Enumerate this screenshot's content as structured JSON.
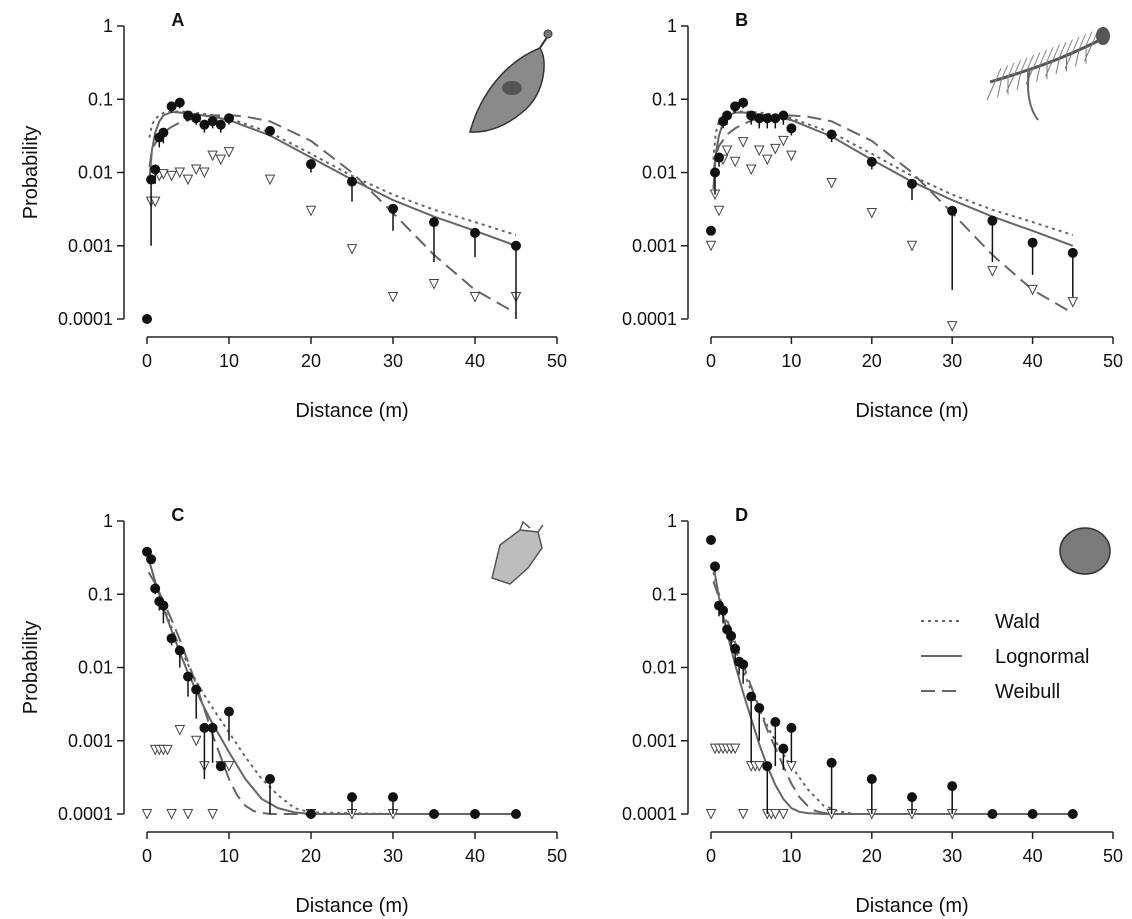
{
  "figure": {
    "xlabel": "Distance (m)",
    "ylabel": "Probability",
    "legend": [
      {
        "label": "Wald",
        "style": "dotted"
      },
      {
        "label": "Lognormal",
        "style": "solid"
      },
      {
        "label": "Weibull",
        "style": "dashed"
      }
    ],
    "colors": {
      "points": "#111111",
      "curves": "#666666",
      "triangles": "#444444"
    },
    "icons": [
      "winged-seed-icon",
      "plumed-seed-icon",
      "angular-seed-icon",
      "round-seed-icon"
    ]
  },
  "chart_data": [
    {
      "type": "scatter",
      "panel": "A",
      "xlabel": "Distance (m)",
      "ylabel": "Probability",
      "xlim": [
        0,
        50
      ],
      "ylim": [
        0.0001,
        1
      ],
      "yscale": "log",
      "xticks": [
        "0",
        "10",
        "20",
        "30",
        "40",
        "50"
      ],
      "yticks": [
        "0.0001",
        "0.001",
        "0.01",
        "0.1",
        "1"
      ],
      "observed": {
        "x": [
          0,
          0.5,
          1,
          1.5,
          2,
          3,
          4,
          5,
          6,
          7,
          8,
          9,
          10,
          15,
          20,
          25,
          30,
          35,
          40,
          45
        ],
        "y": [
          0.0001,
          0.008,
          0.011,
          0.03,
          0.035,
          0.08,
          0.09,
          0.06,
          0.055,
          0.045,
          0.05,
          0.045,
          0.055,
          0.037,
          0.013,
          0.0075,
          0.0032,
          0.0021,
          0.0015,
          0.001
        ],
        "lower": [
          0.0001,
          0.001,
          0.007,
          0.022,
          0.025,
          0.065,
          0.075,
          0.05,
          0.045,
          0.035,
          0.04,
          0.035,
          0.045,
          0.031,
          0.01,
          0.004,
          0.0016,
          0.0006,
          0.0007,
          0.0001
        ]
      },
      "triangles": {
        "x": [
          0.5,
          1,
          1.5,
          2,
          3,
          4,
          5,
          6,
          7,
          8,
          9,
          10,
          15,
          20,
          25,
          30,
          35,
          40,
          45
        ],
        "y": [
          0.004,
          0.004,
          0.009,
          0.0095,
          0.009,
          0.01,
          0.008,
          0.011,
          0.01,
          0.017,
          0.015,
          0.019,
          0.008,
          0.003,
          0.0009,
          0.0002,
          0.0003,
          0.0002,
          0.0002
        ]
      },
      "curves": {
        "Wald": {
          "x": [
            0.3,
            0.6,
            1,
            1.5,
            2,
            3,
            4,
            5,
            6,
            8,
            10,
            15,
            20,
            25,
            30,
            35,
            40,
            45
          ],
          "y": [
            0.03,
            0.045,
            0.054,
            0.06,
            0.065,
            0.068,
            0.068,
            0.067,
            0.065,
            0.061,
            0.055,
            0.035,
            0.018,
            0.009,
            0.005,
            0.0031,
            0.0021,
            0.0014
          ]
        },
        "Lognormal": {
          "x": [
            0.3,
            0.6,
            1,
            1.5,
            2,
            3,
            4,
            5,
            6,
            8,
            10,
            15,
            20,
            25,
            30,
            35,
            40,
            45
          ],
          "y": [
            0.008,
            0.02,
            0.035,
            0.05,
            0.06,
            0.067,
            0.066,
            0.064,
            0.062,
            0.058,
            0.052,
            0.032,
            0.016,
            0.008,
            0.0042,
            0.0025,
            0.0016,
            0.001
          ]
        },
        "Weibull": {
          "x": [
            0.3,
            0.6,
            1,
            2,
            3,
            4,
            5,
            6,
            8,
            10,
            12,
            15,
            20,
            25,
            30,
            35,
            40,
            45
          ],
          "y": [
            0.012,
            0.02,
            0.025,
            0.035,
            0.042,
            0.048,
            0.052,
            0.056,
            0.06,
            0.061,
            0.058,
            0.05,
            0.027,
            0.01,
            0.0028,
            0.00075,
            0.00025,
            0.00012
          ]
        }
      }
    },
    {
      "type": "scatter",
      "panel": "B",
      "xlabel": "Distance (m)",
      "ylabel": "Probability",
      "xlim": [
        0,
        50
      ],
      "ylim": [
        0.0001,
        1
      ],
      "yscale": "log",
      "xticks": [
        "0",
        "10",
        "20",
        "30",
        "40",
        "50"
      ],
      "yticks": [
        "0.0001",
        "0.001",
        "0.01",
        "0.1",
        "1"
      ],
      "observed": {
        "x": [
          0,
          0.5,
          1,
          1.5,
          2,
          3,
          4,
          5,
          6,
          7,
          8,
          9,
          10,
          15,
          20,
          25,
          30,
          35,
          40,
          45
        ],
        "y": [
          0.0016,
          0.01,
          0.016,
          0.05,
          0.06,
          0.08,
          0.09,
          0.06,
          0.055,
          0.055,
          0.055,
          0.06,
          0.04,
          0.033,
          0.014,
          0.007,
          0.003,
          0.0022,
          0.0011,
          0.0008
        ],
        "lower": [
          0.0016,
          0.005,
          0.012,
          0.04,
          0.045,
          0.065,
          0.075,
          0.045,
          0.04,
          0.04,
          0.04,
          0.045,
          0.032,
          0.026,
          0.011,
          0.0042,
          0.00025,
          0.0006,
          0.0004,
          0.0002
        ]
      },
      "triangles": {
        "x": [
          0,
          0.5,
          1,
          1.5,
          2,
          3,
          4,
          5,
          6,
          7,
          8,
          9,
          10,
          15,
          20,
          25,
          30,
          35,
          40,
          45
        ],
        "y": [
          0.001,
          0.005,
          0.003,
          0.015,
          0.02,
          0.014,
          0.026,
          0.011,
          0.02,
          0.015,
          0.021,
          0.027,
          0.017,
          0.0072,
          0.0028,
          0.001,
          8e-05,
          0.00045,
          0.00025,
          0.00017
        ]
      },
      "curves": {
        "Wald": {
          "x": [
            0.3,
            0.6,
            1,
            1.5,
            2,
            3,
            4,
            5,
            6,
            8,
            10,
            15,
            20,
            25,
            30,
            35,
            40,
            45
          ],
          "y": [
            0.015,
            0.035,
            0.05,
            0.058,
            0.064,
            0.068,
            0.068,
            0.067,
            0.066,
            0.061,
            0.055,
            0.035,
            0.018,
            0.009,
            0.005,
            0.0031,
            0.0021,
            0.0014
          ]
        },
        "Lognormal": {
          "x": [
            0.3,
            0.6,
            1,
            1.5,
            2,
            3,
            4,
            5,
            6,
            8,
            10,
            15,
            20,
            25,
            30,
            35,
            40,
            45
          ],
          "y": [
            0.006,
            0.018,
            0.032,
            0.048,
            0.058,
            0.066,
            0.066,
            0.064,
            0.062,
            0.058,
            0.052,
            0.031,
            0.015,
            0.0075,
            0.0042,
            0.0025,
            0.0016,
            0.001
          ]
        },
        "Weibull": {
          "x": [
            0.3,
            0.6,
            1,
            2,
            3,
            4,
            5,
            6,
            8,
            10,
            12,
            15,
            20,
            25,
            30,
            35,
            40,
            45
          ],
          "y": [
            0.01,
            0.017,
            0.023,
            0.033,
            0.04,
            0.046,
            0.051,
            0.055,
            0.059,
            0.06,
            0.058,
            0.05,
            0.027,
            0.01,
            0.0028,
            0.00075,
            0.00025,
            0.00012
          ]
        }
      }
    },
    {
      "type": "scatter",
      "panel": "C",
      "xlabel": "Distance (m)",
      "ylabel": "Probability",
      "xlim": [
        0,
        50
      ],
      "ylim": [
        0.0001,
        1
      ],
      "yscale": "log",
      "xticks": [
        "0",
        "10",
        "20",
        "30",
        "40",
        "50"
      ],
      "yticks": [
        "0.0001",
        "0.001",
        "0.01",
        "0.1",
        "1"
      ],
      "observed": {
        "x": [
          0,
          0.5,
          1,
          1.5,
          2,
          3,
          4,
          5,
          6,
          7,
          8,
          9,
          10,
          15,
          20,
          25,
          30,
          35,
          40,
          45
        ],
        "y": [
          0.38,
          0.3,
          0.12,
          0.08,
          0.07,
          0.025,
          0.017,
          0.0075,
          0.005,
          0.0015,
          0.0015,
          0.00045,
          0.0025,
          0.0003,
          0.0001,
          0.00017,
          0.00017,
          0.0001,
          0.0001,
          0.0001
        ],
        "lower": [
          0.38,
          0.3,
          0.1,
          0.06,
          0.04,
          0.02,
          0.01,
          0.004,
          0.002,
          0.0003,
          0.0005,
          0.00045,
          0.001,
          0.0001,
          0.0001,
          0.0001,
          0.0001,
          0.0001,
          0.0001,
          0.0001
        ]
      },
      "triangles": {
        "x": [
          0,
          1,
          1.5,
          2,
          2.5,
          3,
          4,
          5,
          6,
          7,
          8,
          9,
          10,
          20,
          25,
          30
        ],
        "y": [
          0.0001,
          0.00075,
          0.00075,
          0.00075,
          0.00075,
          0.0001,
          0.0014,
          0.0001,
          0.001,
          0.00045,
          0.0001,
          0.00045,
          0.00045,
          0.0001,
          0.0001,
          0.0001
        ]
      },
      "curves": {
        "Wald": {
          "x": [
            0.2,
            1,
            2,
            3,
            4,
            5,
            6,
            7,
            8,
            9,
            10,
            12,
            14,
            16,
            18,
            20,
            30,
            45
          ],
          "y": [
            0.3,
            0.15,
            0.07,
            0.035,
            0.019,
            0.011,
            0.0065,
            0.0042,
            0.0028,
            0.0019,
            0.0013,
            0.0006,
            0.0003,
            0.00018,
            0.00012,
            0.000105,
            0.0001,
            0.0001
          ]
        },
        "Lognormal": {
          "x": [
            0.2,
            1,
            2,
            3,
            4,
            5,
            6,
            7,
            8,
            9,
            10,
            12,
            14,
            16,
            18,
            20,
            30,
            45
          ],
          "y": [
            0.3,
            0.15,
            0.065,
            0.032,
            0.016,
            0.0085,
            0.0048,
            0.0028,
            0.0017,
            0.0011,
            0.0007,
            0.0003,
            0.00016,
            0.00012,
            0.000105,
            0.0001,
            0.0001,
            0.0001
          ]
        },
        "Weibull": {
          "x": [
            0.2,
            1,
            2,
            3,
            4,
            5,
            6,
            7,
            8,
            9,
            10,
            11,
            12,
            13,
            14,
            15,
            20,
            45
          ],
          "y": [
            0.2,
            0.14,
            0.08,
            0.045,
            0.024,
            0.012,
            0.0058,
            0.0027,
            0.0012,
            0.0006,
            0.0003,
            0.00018,
            0.00013,
            0.00011,
            0.000104,
            0.0001,
            0.0001,
            0.0001
          ]
        }
      }
    },
    {
      "type": "scatter",
      "panel": "D",
      "xlabel": "Distance (m)",
      "ylabel": "Probability",
      "xlim": [
        0,
        50
      ],
      "ylim": [
        0.0001,
        1
      ],
      "yscale": "log",
      "xticks": [
        "0",
        "10",
        "20",
        "30",
        "40",
        "50"
      ],
      "yticks": [
        "0.0001",
        "0.001",
        "0.01",
        "0.1",
        "1"
      ],
      "observed": {
        "x": [
          0,
          0.5,
          1,
          1.5,
          2,
          2.5,
          3,
          3.5,
          4,
          5,
          6,
          7,
          8,
          9,
          10,
          15,
          20,
          25,
          30,
          35,
          40,
          45
        ],
        "y": [
          0.55,
          0.24,
          0.07,
          0.06,
          0.033,
          0.027,
          0.018,
          0.012,
          0.011,
          0.004,
          0.0028,
          0.00045,
          0.0018,
          0.00078,
          0.0015,
          0.0005,
          0.0003,
          0.00017,
          0.00024,
          0.0001,
          0.0001,
          0.0001
        ],
        "lower": [
          0.55,
          0.2,
          0.05,
          0.04,
          0.025,
          0.02,
          0.012,
          0.008,
          0.006,
          0.0005,
          0.001,
          0.0001,
          0.00045,
          0.0004,
          0.0005,
          0.0001,
          0.0001,
          0.0001,
          0.0001,
          0.0001,
          0.0001,
          0.0001
        ]
      },
      "triangles": {
        "x": [
          0,
          0.5,
          1,
          1.5,
          2,
          2.5,
          3,
          4,
          5,
          5.5,
          6,
          7,
          7.5,
          8,
          9,
          10,
          15,
          20,
          25,
          30
        ],
        "y": [
          0.0001,
          0.00078,
          0.00078,
          0.00078,
          0.00078,
          0.00078,
          0.00078,
          0.0001,
          0.00045,
          0.00045,
          0.00045,
          0.0001,
          0.0001,
          0.0001,
          0.0001,
          0.00045,
          0.0001,
          0.0001,
          0.0001,
          0.0001
        ]
      },
      "curves": {
        "Wald": {
          "x": [
            0.3,
            1,
            2,
            3,
            4,
            5,
            6,
            7,
            8,
            9,
            10,
            12,
            14,
            16,
            18,
            20,
            30,
            45
          ],
          "y": [
            0.2,
            0.1,
            0.04,
            0.018,
            0.009,
            0.0048,
            0.0027,
            0.0016,
            0.001,
            0.00065,
            0.00045,
            0.00022,
            0.00013,
            0.000108,
            0.0001,
            0.0001,
            0.0001,
            0.0001
          ]
        },
        "Lognormal": {
          "x": [
            0.3,
            1,
            2,
            3,
            4,
            5,
            6,
            7,
            8,
            9,
            10,
            11,
            12,
            14,
            16,
            20,
            30,
            45
          ],
          "y": [
            0.25,
            0.09,
            0.03,
            0.011,
            0.0045,
            0.002,
            0.0009,
            0.00045,
            0.00025,
            0.00016,
            0.00012,
            0.000107,
            0.000103,
            0.0001,
            0.0001,
            0.0001,
            0.0001,
            0.0001
          ]
        },
        "Weibull": {
          "x": [
            0.3,
            1,
            2,
            3,
            4,
            5,
            6,
            7,
            8,
            9,
            10,
            11,
            12,
            13,
            14,
            15,
            20,
            45
          ],
          "y": [
            0.15,
            0.09,
            0.045,
            0.022,
            0.011,
            0.0055,
            0.0028,
            0.0014,
            0.0008,
            0.00045,
            0.00026,
            0.00017,
            0.00013,
            0.00011,
            0.000104,
            0.0001,
            0.0001,
            0.0001
          ]
        }
      }
    }
  ]
}
